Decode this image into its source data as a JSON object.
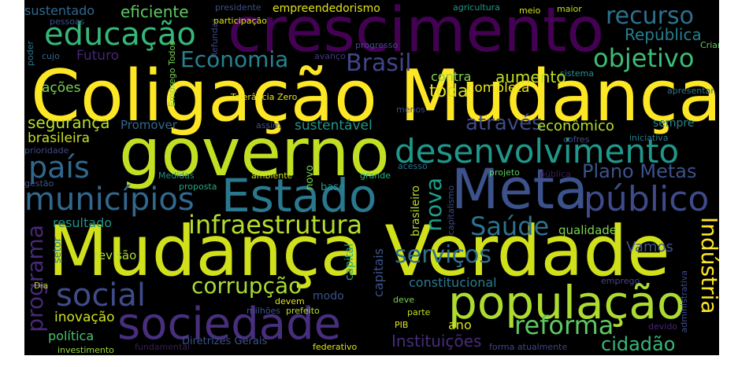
{
  "words": [
    {
      "text": "Coligação Mudança",
      "color": "#fde725"
    },
    {
      "text": "Mudança Verdade",
      "color": "#d0e11c"
    },
    {
      "text": "crescimento",
      "color": "#440154"
    },
    {
      "text": "governo",
      "color": "#c2df23"
    },
    {
      "text": "Meta",
      "color": "#3b528b"
    },
    {
      "text": "Estado",
      "color": "#2a788e"
    },
    {
      "text": "população",
      "color": "#addc30"
    },
    {
      "text": "sociedade",
      "color": "#472f7d"
    },
    {
      "text": "desenvolvimento",
      "color": "#1f988b"
    },
    {
      "text": "público",
      "color": "#3e4a89"
    },
    {
      "text": "educação",
      "color": "#35b779"
    },
    {
      "text": "municípios",
      "color": "#31688e"
    },
    {
      "text": "social",
      "color": "#3e4c8a"
    },
    {
      "text": "país",
      "color": "#31688e"
    },
    {
      "text": "infraestrutura",
      "color": "#b5de2b"
    },
    {
      "text": "Economia",
      "color": "#26828e"
    },
    {
      "text": "objetivo",
      "color": "#3dbc74"
    },
    {
      "text": "recurso",
      "color": "#2c728e"
    },
    {
      "text": "Brasil",
      "color": "#414487"
    },
    {
      "text": "Saúde",
      "color": "#2c728e"
    },
    {
      "text": "Plano Metas",
      "color": "#3b528b"
    },
    {
      "text": "através",
      "color": "#3e4a89"
    },
    {
      "text": "reforma",
      "color": "#5ec962"
    },
    {
      "text": "corrupção",
      "color": "#a8db34"
    },
    {
      "text": "serviços",
      "color": "#2d708e"
    },
    {
      "text": "programa",
      "color": "#482878"
    },
    {
      "text": "Indústria",
      "color": "#fde725"
    },
    {
      "text": "nova",
      "color": "#1f9e89"
    },
    {
      "text": "Instituições",
      "color": "#472d7b"
    },
    {
      "text": "cidadão",
      "color": "#35b779"
    },
    {
      "text": "República",
      "color": "#277f8e"
    },
    {
      "text": "segurança",
      "color": "#b5de2b"
    },
    {
      "text": "Futuro",
      "color": "#482575"
    },
    {
      "text": "eficiente",
      "color": "#5ec962"
    },
    {
      "text": "sustentado",
      "color": "#31688e"
    },
    {
      "text": "empreendedorismo",
      "color": "#e5e419"
    },
    {
      "text": "aumento",
      "color": "#c2df23"
    },
    {
      "text": "toda",
      "color": "#d8e219"
    },
    {
      "text": "sustentável",
      "color": "#1f968b"
    },
    {
      "text": "econômico",
      "color": "#b5de2b"
    },
    {
      "text": "Promover",
      "color": "#31688e"
    },
    {
      "text": "brasileira",
      "color": "#c8e020"
    },
    {
      "text": "ações",
      "color": "#7ad151"
    },
    {
      "text": "contra",
      "color": "#84d44b"
    },
    {
      "text": "completa",
      "color": "#e5e419"
    },
    {
      "text": "sempre",
      "color": "#26828e"
    },
    {
      "text": "resultado",
      "color": "#21918c"
    },
    {
      "text": "revisão",
      "color": "#addc30"
    },
    {
      "text": "Vamos",
      "color": "#3b528b"
    },
    {
      "text": "qualidade",
      "color": "#7fd34e"
    },
    {
      "text": "inovação",
      "color": "#cde11d"
    },
    {
      "text": "política",
      "color": "#4ac16d"
    },
    {
      "text": "modo",
      "color": "#3b528b"
    },
    {
      "text": "constitucional",
      "color": "#287c8e"
    },
    {
      "text": "ano",
      "color": "#d8e219"
    },
    {
      "text": "Diretrizes Gerais",
      "color": "#3b528b"
    },
    {
      "text": "federativo",
      "color": "#dfe318"
    },
    {
      "text": "investimento",
      "color": "#9bd93c"
    },
    {
      "text": "fundamental",
      "color": "#3b1c5a"
    },
    {
      "text": "forma atualmente",
      "color": "#404688"
    },
    {
      "text": "capital",
      "color": "#22a884"
    },
    {
      "text": "capitais",
      "color": "#3b528b"
    },
    {
      "text": "brasileiro",
      "color": "#b5de2b"
    },
    {
      "text": "setor",
      "color": "#2a788e"
    },
    {
      "text": "novo",
      "color": "#7ad151"
    },
    {
      "text": "base",
      "color": "#21918c"
    },
    {
      "text": "Medidas",
      "color": "#21918c"
    },
    {
      "text": "proposta",
      "color": "#22a884"
    },
    {
      "text": "ambiente",
      "color": "#c8e020"
    },
    {
      "text": "grande",
      "color": "#29af7f"
    },
    {
      "text": "acesso",
      "color": "#2c728e"
    },
    {
      "text": "projeto",
      "color": "#5ec962"
    },
    {
      "text": "pública",
      "color": "#3b1c5a"
    },
    {
      "text": "cofres",
      "color": "#3e4a89"
    },
    {
      "text": "iniciativa",
      "color": "#287c8e"
    },
    {
      "text": "prioridade",
      "color": "#3e4a89"
    },
    {
      "text": "gestão",
      "color": "#3b528b"
    },
    {
      "text": "assim",
      "color": "#3b528b"
    },
    {
      "text": "sistema",
      "color": "#21918c"
    },
    {
      "text": "apresentar",
      "color": "#2c728e"
    },
    {
      "text": "menos",
      "color": "#3e4a89"
    },
    {
      "text": "Criar",
      "color": "#5ec962"
    },
    {
      "text": "avanço",
      "color": "#453781"
    },
    {
      "text": "progresso",
      "color": "#3e4a89"
    },
    {
      "text": "cujo",
      "color": "#31688e"
    },
    {
      "text": "Tolerância Zero",
      "color": "#e5e419"
    },
    {
      "text": "participação",
      "color": "#dfe318"
    },
    {
      "text": "pessoas",
      "color": "#3b528b"
    },
    {
      "text": "presidente",
      "color": "#3b528b"
    },
    {
      "text": "agricultura",
      "color": "#1f988b"
    },
    {
      "text": "meio",
      "color": "#d8e219"
    },
    {
      "text": "maior",
      "color": "#c2df23"
    },
    {
      "text": "poder",
      "color": "#2a788e"
    },
    {
      "text": "Refundar",
      "color": "#404688"
    },
    {
      "text": "Emprego Todos",
      "color": "#7ad151"
    },
    {
      "text": "Dia",
      "color": "#b5de2b"
    },
    {
      "text": "milhões",
      "color": "#3b528b"
    },
    {
      "text": "devem",
      "color": "#e5e419"
    },
    {
      "text": "prefeito",
      "color": "#b5de2b"
    },
    {
      "text": "deve",
      "color": "#7ad151"
    },
    {
      "text": "parte",
      "color": "#c2df23"
    },
    {
      "text": "PIB",
      "color": "#e5e419"
    },
    {
      "text": "capitalismo",
      "color": "#3e4a89"
    },
    {
      "text": "emprego",
      "color": "#414487"
    },
    {
      "text": "administrativa",
      "color": "#3e4a89"
    },
    {
      "text": "devido",
      "color": "#482475"
    }
  ]
}
